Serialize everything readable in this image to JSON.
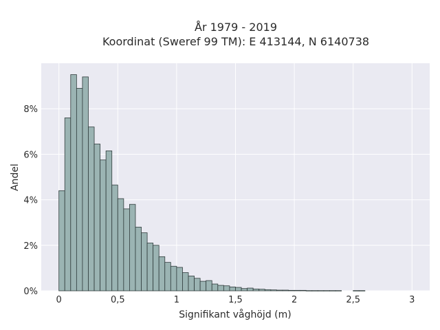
{
  "chart_data": {
    "type": "bar",
    "title_line1": "År 1979 - 2019",
    "title_line2": "Koordinat (Sweref 99 TM): E 413144, N 6140738",
    "xlabel": "Signifikant våghöjd (m)",
    "ylabel": "Andel",
    "xlim": [
      -0.15,
      3.15
    ],
    "ylim": [
      0,
      10
    ],
    "bin_width": 0.05,
    "bin_start": 0.0,
    "x_ticks": [
      {
        "value": 0,
        "label": "0"
      },
      {
        "value": 0.5,
        "label": "0,5"
      },
      {
        "value": 1,
        "label": "1"
      },
      {
        "value": 1.5,
        "label": "1,5"
      },
      {
        "value": 2,
        "label": "2"
      },
      {
        "value": 2.5,
        "label": "2,5"
      },
      {
        "value": 3,
        "label": "3"
      }
    ],
    "y_ticks": [
      {
        "value": 0,
        "label": "0%"
      },
      {
        "value": 2,
        "label": "2%"
      },
      {
        "value": 4,
        "label": "4%"
      },
      {
        "value": 6,
        "label": "6%"
      },
      {
        "value": 8,
        "label": "8%"
      }
    ],
    "values": [
      4.4,
      7.6,
      9.5,
      8.9,
      9.4,
      7.2,
      6.45,
      5.75,
      6.15,
      4.65,
      4.05,
      3.6,
      3.8,
      2.8,
      2.55,
      2.1,
      2.0,
      1.5,
      1.25,
      1.08,
      1.03,
      0.8,
      0.65,
      0.55,
      0.42,
      0.45,
      0.3,
      0.24,
      0.22,
      0.17,
      0.15,
      0.1,
      0.12,
      0.08,
      0.07,
      0.05,
      0.04,
      0.03,
      0.03,
      0.02,
      0.02,
      0.02,
      0.01,
      0.01,
      0.01,
      0.01,
      0.01,
      0.01,
      0.0,
      0.0,
      0.01,
      0.01
    ],
    "bar_color": "#9bb4b3",
    "bar_edge_color": "#2f3b3b",
    "plot_bg": "#eaeaf2",
    "grid": true
  }
}
